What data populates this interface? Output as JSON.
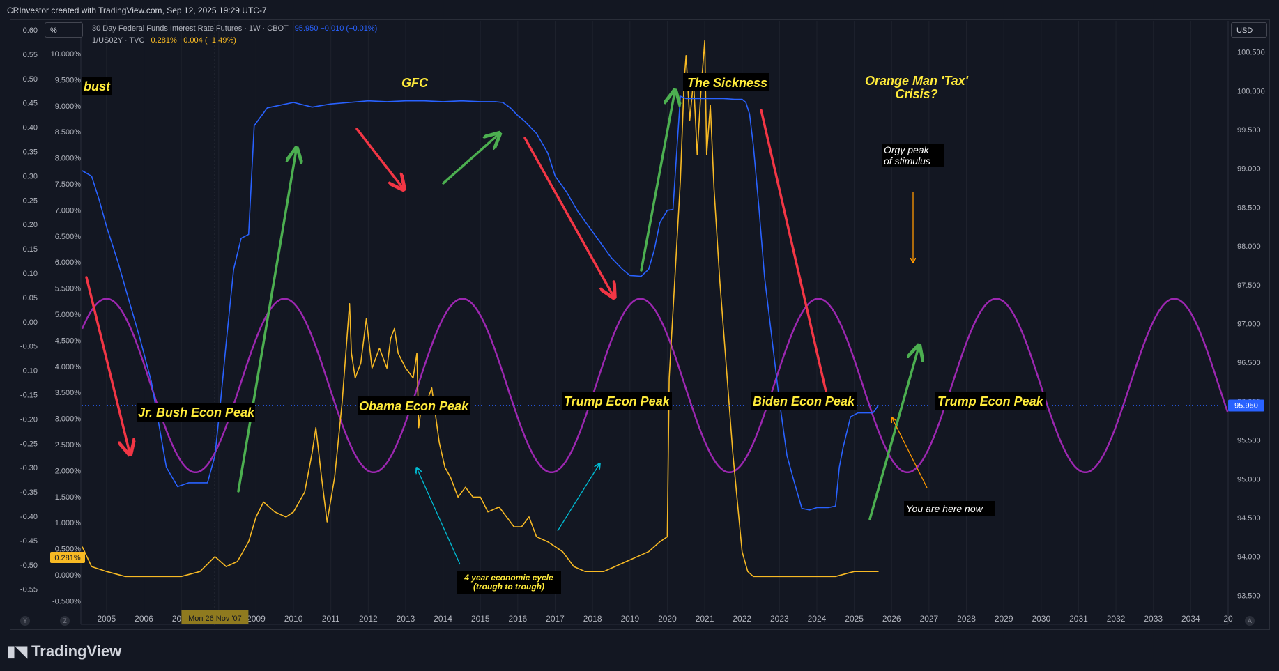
{
  "header": {
    "credit": "CRInvestor created with TradingView.com, Sep 12, 2025 19:29 UTC-7"
  },
  "toolbar": {
    "unit_label": "%",
    "currency_label": "USD"
  },
  "legend": {
    "series1": {
      "name": "30 Day Federal Funds Interest Rate Futures · 1W · CBOT",
      "values": "95.950  −0.010 (−0.01%)",
      "color": "#2962ff"
    },
    "series2": {
      "name": "1/US02Y · TVC",
      "values": "0.281%  −0.004 (−1.49%)",
      "color": "#f7b924"
    }
  },
  "left_axis_outer": [
    "0.60",
    "0.55",
    "0.50",
    "0.45",
    "0.40",
    "0.35",
    "0.30",
    "0.25",
    "0.20",
    "0.15",
    "0.10",
    "0.05",
    "0.00",
    "-0.05",
    "-0.10",
    "-0.15",
    "-0.20",
    "-0.25",
    "-0.30",
    "-0.35",
    "-0.40",
    "-0.45",
    "-0.50",
    "-0.55"
  ],
  "left_axis_pct": [
    "10.000%",
    "9.500%",
    "9.000%",
    "8.500%",
    "8.000%",
    "7.500%",
    "7.000%",
    "6.500%",
    "6.000%",
    "5.500%",
    "5.000%",
    "4.500%",
    "4.000%",
    "3.500%",
    "3.000%",
    "2.500%",
    "2.000%",
    "1.500%",
    "1.000%",
    "0.500%",
    "0.000%",
    "-0.500%"
  ],
  "right_axis": [
    "100.500",
    "100.000",
    "99.500",
    "99.000",
    "98.500",
    "98.000",
    "97.500",
    "97.000",
    "96.500",
    "96.000",
    "95.500",
    "95.000",
    "94.500",
    "94.000",
    "93.500"
  ],
  "badges": {
    "yield_current": "0.281%",
    "futures_current": "95.950",
    "crosshair_date": "Mon 26 Nov '07"
  },
  "corner_buttons": {
    "left_1": "Y",
    "left_2": "Z",
    "right": "A"
  },
  "annotations": {
    "bust": "bust",
    "gfc": "GFC",
    "sickness": "The Sickness",
    "orange_line1": "Orange Man 'Tax'",
    "orange_line2": "Crisis?",
    "orgy_line1": "Orgy peak",
    "orgy_line2": "of stimulus",
    "bush_peak": "Jr. Bush Econ Peak",
    "obama_peak": "Obama Econ Peak",
    "trump_peak_1": "Trump Econ Peak",
    "biden_peak": "Biden Econ Peak",
    "trump_peak_2": "Trump Econ Peak",
    "you_are_here": "You are here now",
    "cycle_line1": "4 year economic cycle",
    "cycle_line2": "(trough to trough)"
  },
  "footer": {
    "brand": "TradingView"
  },
  "chart_data": {
    "type": "line",
    "x_ticks": [
      "2005",
      "2006",
      "2007",
      "2008",
      "2009",
      "2010",
      "2011",
      "2012",
      "2013",
      "2014",
      "2015",
      "2016",
      "2017",
      "2018",
      "2019",
      "2020",
      "2021",
      "2022",
      "2023",
      "2024",
      "2025",
      "2026",
      "2027",
      "2028",
      "2029",
      "2030",
      "2031",
      "2032",
      "2033",
      "2034",
      "20"
    ],
    "xlim": [
      2004.35,
      2035.0
    ],
    "series": [
      {
        "name": "30 Day Federal Funds Interest Rate Futures · 1W · CBOT",
        "axis": "right",
        "color": "#2962ff",
        "ylim": [
          93.36,
          100.9
        ],
        "x": [
          2004.35,
          2004.6,
          2004.8,
          2005.0,
          2005.3,
          2005.6,
          2005.9,
          2006.2,
          2006.4,
          2006.6,
          2006.9,
          2007.2,
          2007.5,
          2007.7,
          2007.9,
          2008.05,
          2008.2,
          2008.4,
          2008.6,
          2008.8,
          2008.95,
          2009.3,
          2009.7,
          2010.0,
          2010.5,
          2011.0,
          2011.5,
          2012.0,
          2012.5,
          2013.0,
          2013.5,
          2014.0,
          2014.5,
          2015.0,
          2015.4,
          2015.6,
          2015.8,
          2016.0,
          2016.2,
          2016.5,
          2016.8,
          2017.0,
          2017.3,
          2017.6,
          2017.9,
          2018.2,
          2018.5,
          2018.8,
          2019.0,
          2019.3,
          2019.5,
          2019.65,
          2019.8,
          2020.0,
          2020.15,
          2020.25,
          2020.35,
          2020.5,
          2021.0,
          2021.5,
          2021.8,
          2022.0,
          2022.1,
          2022.2,
          2022.3,
          2022.45,
          2022.6,
          2022.8,
          2023.0,
          2023.2,
          2023.4,
          2023.6,
          2023.8,
          2024.0,
          2024.3,
          2024.5,
          2024.6,
          2024.7,
          2024.9,
          2025.1,
          2025.3,
          2025.5,
          2025.65
        ],
        "y": [
          98.97,
          98.9,
          98.6,
          98.25,
          97.8,
          97.3,
          96.8,
          96.25,
          95.7,
          95.15,
          94.9,
          94.95,
          94.95,
          94.95,
          95.3,
          96.0,
          96.75,
          97.7,
          98.1,
          98.15,
          99.55,
          99.78,
          99.82,
          99.85,
          99.79,
          99.83,
          99.85,
          99.87,
          99.86,
          99.87,
          99.87,
          99.86,
          99.87,
          99.86,
          99.86,
          99.85,
          99.78,
          99.68,
          99.6,
          99.45,
          99.2,
          98.9,
          98.7,
          98.45,
          98.25,
          98.05,
          97.85,
          97.7,
          97.62,
          97.61,
          97.7,
          97.95,
          98.3,
          98.46,
          98.47,
          99.2,
          99.93,
          99.9,
          99.9,
          99.9,
          99.89,
          99.89,
          99.85,
          99.7,
          99.3,
          98.5,
          97.6,
          96.8,
          96.0,
          95.3,
          94.95,
          94.62,
          94.6,
          94.63,
          94.63,
          94.65,
          95.15,
          95.4,
          95.8,
          95.85,
          95.85,
          95.85,
          95.95
        ]
      },
      {
        "name": "1/US02Y · TVC",
        "axis": "left",
        "color": "#f7b924",
        "ylim": [
          -0.56,
          0.62
        ],
        "x": [
          2004.35,
          2004.6,
          2005.0,
          2005.5,
          2006.0,
          2006.5,
          2007.0,
          2007.5,
          2007.9,
          2008.2,
          2008.5,
          2008.8,
          2009.0,
          2009.2,
          2009.5,
          2009.8,
          2010.0,
          2010.3,
          2010.5,
          2010.6,
          2010.75,
          2010.9,
          2011.1,
          2011.3,
          2011.5,
          2011.55,
          2011.65,
          2011.8,
          2011.95,
          2012.1,
          2012.3,
          2012.5,
          2012.6,
          2012.7,
          2012.8,
          2013.0,
          2013.2,
          2013.3,
          2013.35,
          2013.45,
          2013.55,
          2013.7,
          2013.9,
          2014.05,
          2014.2,
          2014.4,
          2014.6,
          2014.8,
          2015.0,
          2015.2,
          2015.5,
          2015.7,
          2015.9,
          2016.1,
          2016.3,
          2016.5,
          2016.8,
          2017.0,
          2017.2,
          2017.5,
          2017.8,
          2018.0,
          2018.3,
          2018.6,
          2018.9,
          2019.2,
          2019.5,
          2019.8,
          2020.0,
          2020.05,
          2020.2,
          2020.35,
          2020.45,
          2020.5,
          2020.6,
          2020.7,
          2020.8,
          2020.9,
          2021.0,
          2021.05,
          2021.15,
          2021.25,
          2021.4,
          2021.5,
          2021.6,
          2021.75,
          2021.9,
          2022.0,
          2022.15,
          2022.3,
          2022.5,
          2022.7,
          2023.0,
          2023.5,
          2024.0,
          2024.5,
          2025.0,
          2025.65
        ],
        "y": [
          -0.44,
          -0.48,
          -0.49,
          -0.5,
          -0.5,
          -0.5,
          -0.5,
          -0.49,
          -0.46,
          -0.48,
          -0.47,
          -0.43,
          -0.38,
          -0.35,
          -0.37,
          -0.38,
          -0.37,
          -0.33,
          -0.25,
          -0.2,
          -0.3,
          -0.39,
          -0.3,
          -0.15,
          0.05,
          -0.05,
          -0.1,
          -0.07,
          0.02,
          -0.08,
          -0.04,
          -0.08,
          -0.02,
          0.0,
          -0.05,
          -0.08,
          -0.1,
          -0.05,
          -0.2,
          -0.14,
          -0.15,
          -0.12,
          -0.23,
          -0.28,
          -0.3,
          -0.34,
          -0.32,
          -0.34,
          -0.34,
          -0.37,
          -0.36,
          -0.38,
          -0.4,
          -0.4,
          -0.38,
          -0.42,
          -0.43,
          -0.44,
          -0.45,
          -0.48,
          -0.49,
          -0.49,
          -0.49,
          -0.48,
          -0.47,
          -0.46,
          -0.45,
          -0.43,
          -0.42,
          -0.1,
          0.1,
          0.3,
          0.5,
          0.55,
          0.42,
          0.5,
          0.35,
          0.48,
          0.58,
          0.35,
          0.45,
          0.28,
          0.1,
          0.0,
          -0.1,
          -0.25,
          -0.37,
          -0.45,
          -0.49,
          -0.5,
          -0.5,
          -0.5,
          -0.5,
          -0.5,
          -0.5,
          -0.5,
          -0.49,
          -0.49
        ]
      },
      {
        "name": "",
        "axis": "left",
        "color": "#9c27b0",
        "type": "sine",
        "peak_x": 2005.0,
        "period_years": 4.76,
        "y_max": 0.06,
        "y_min": -0.29
      }
    ],
    "price_line": {
      "value": 95.95,
      "axis": "right"
    },
    "crosshair_x": 2007.9
  }
}
